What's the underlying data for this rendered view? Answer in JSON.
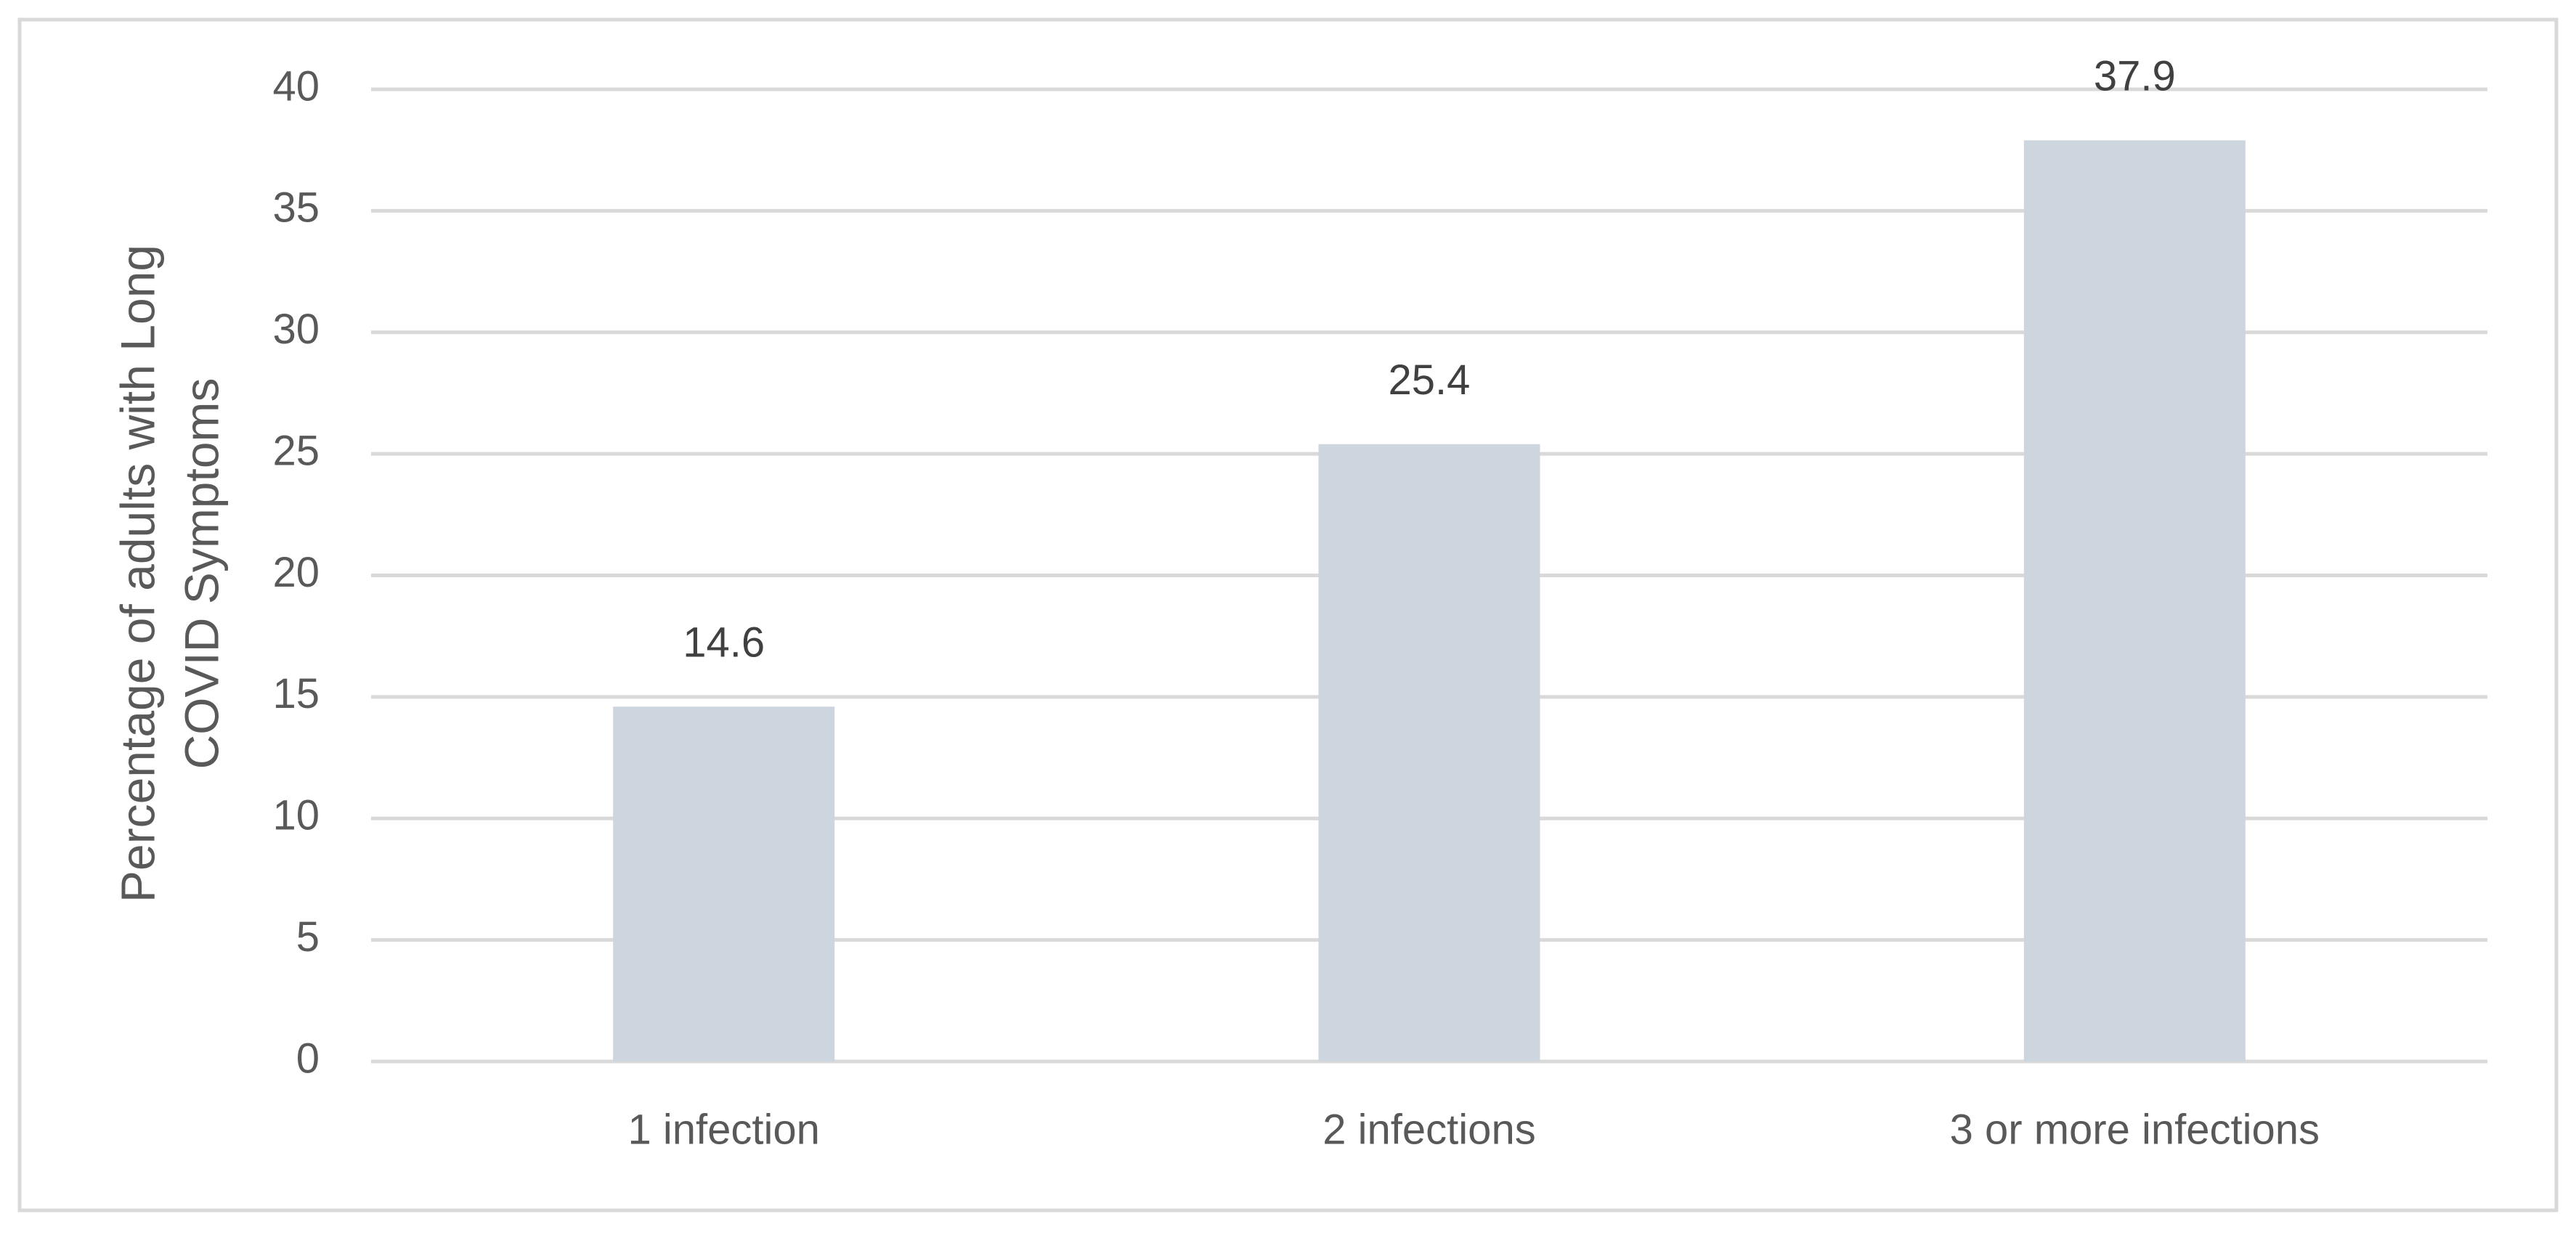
{
  "chart_data": {
    "type": "bar",
    "ylabel": [
      "Percentage of adults with Long",
      "COVID Symptoms"
    ],
    "categories": [
      "1 infection",
      "2 infections",
      "3 or more infections"
    ],
    "values": [
      14.6,
      25.4,
      37.9
    ],
    "color": "#cdd5df",
    "ylim": [
      0,
      40
    ],
    "yticks": [
      0,
      5,
      10,
      15,
      20,
      25,
      30,
      35,
      40
    ],
    "grid": true
  }
}
